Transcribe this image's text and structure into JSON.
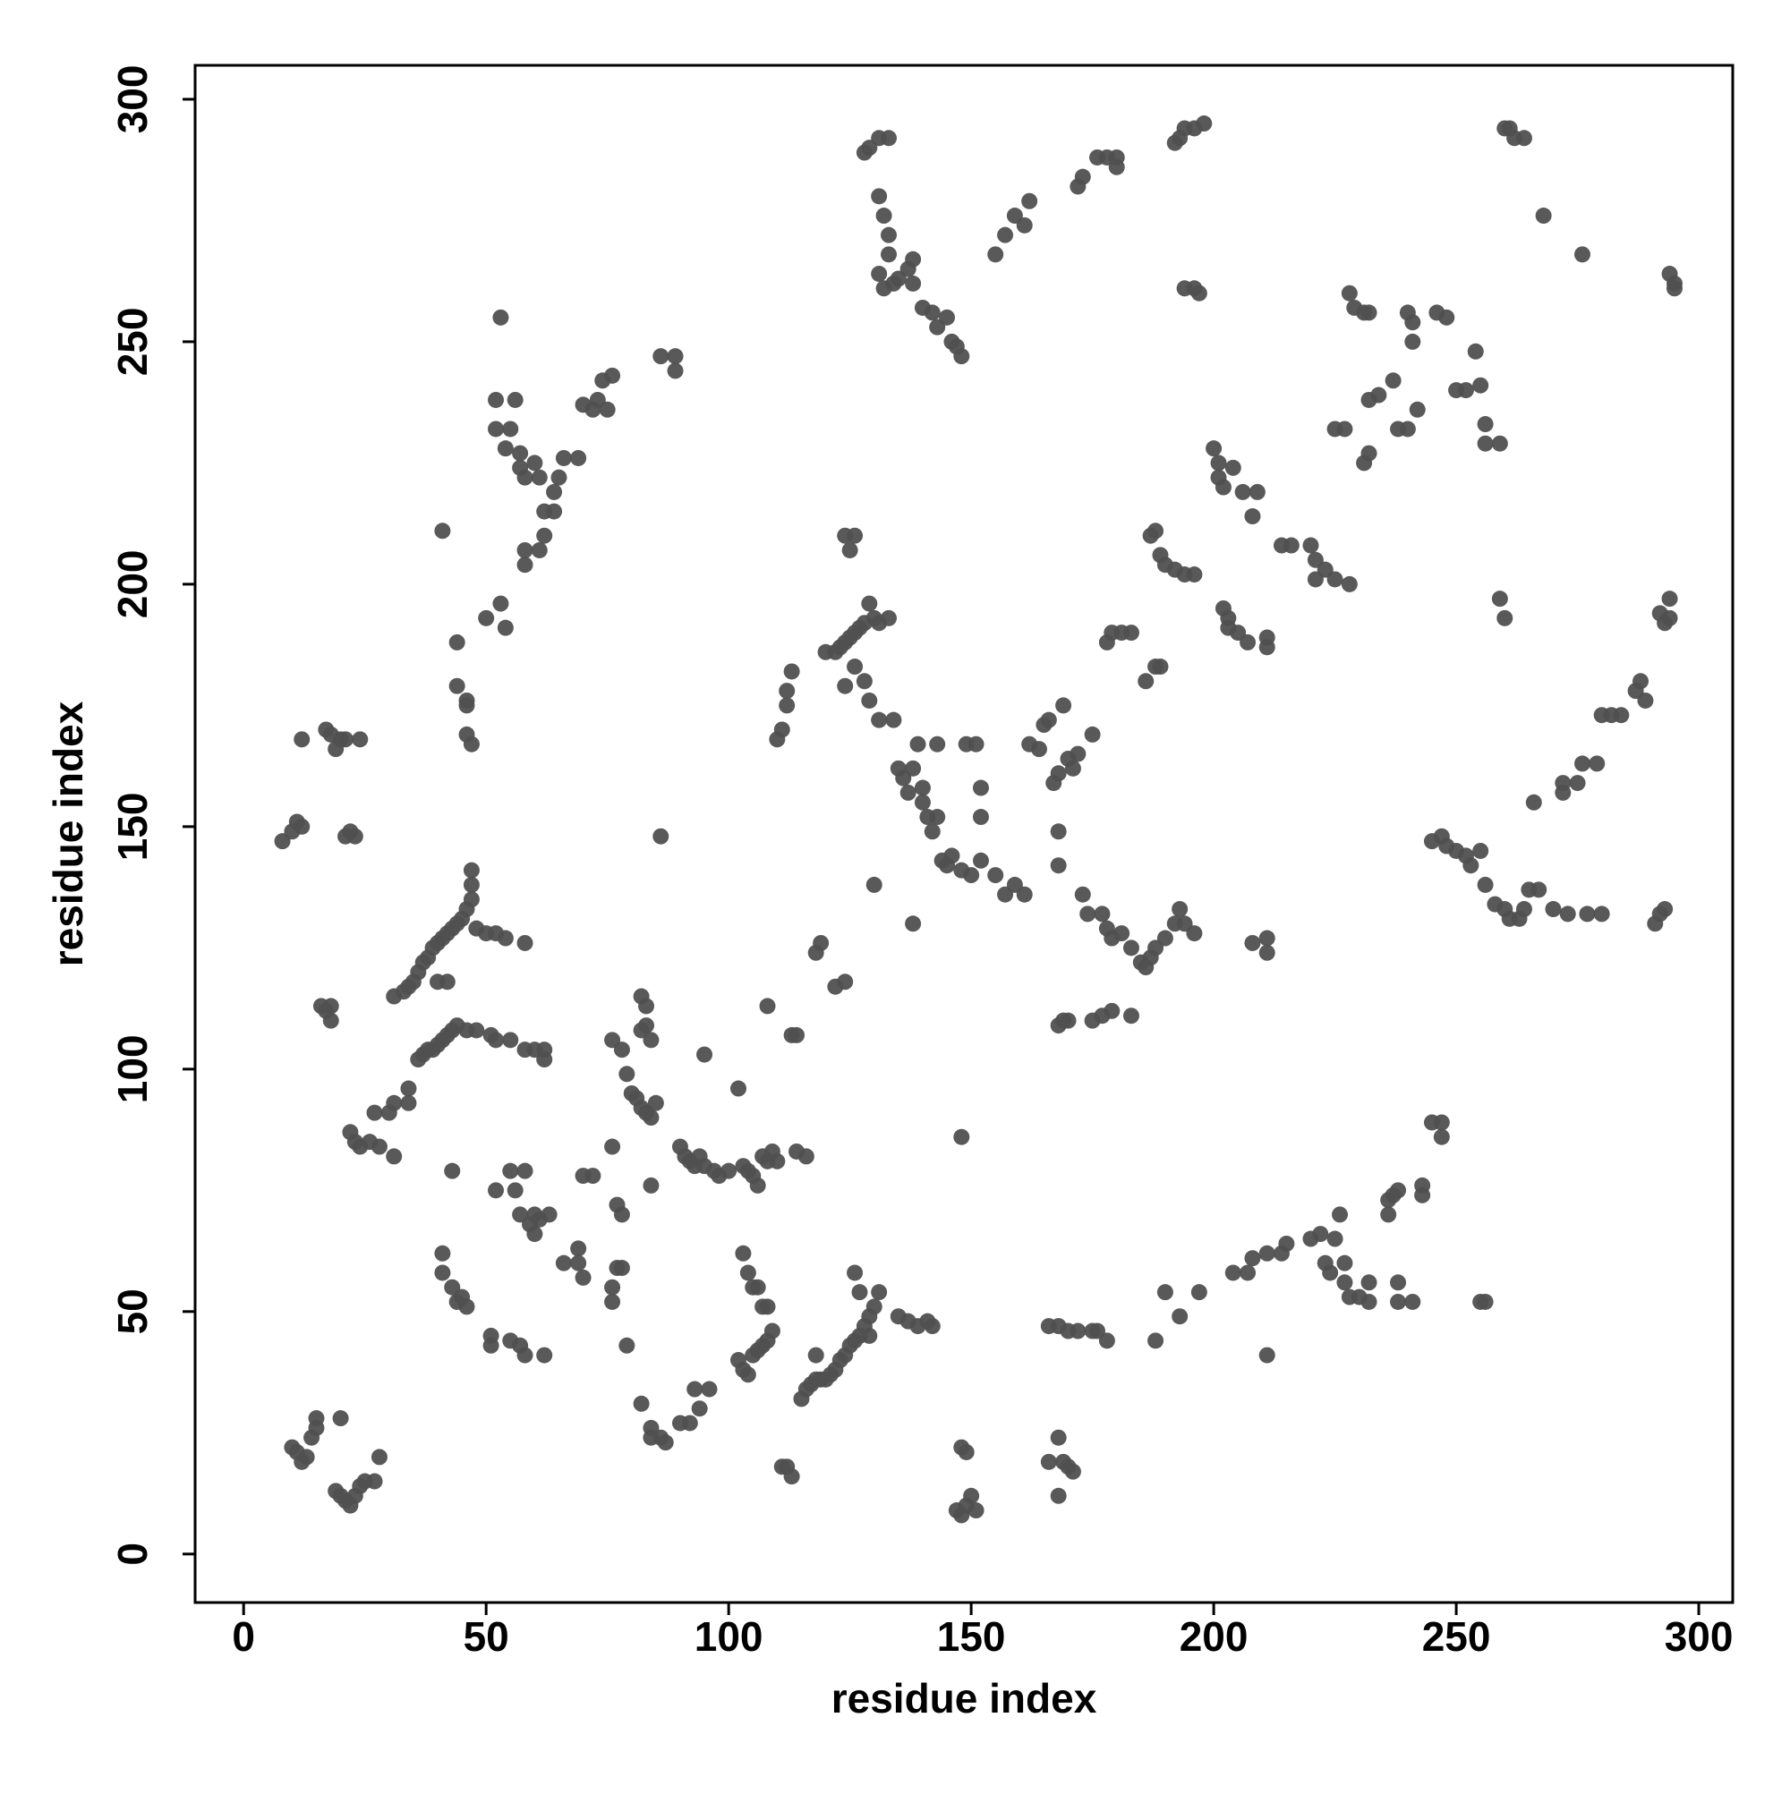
{
  "chart_data": {
    "type": "scatter",
    "xlabel": "residue index",
    "ylabel": "residue index",
    "xlim": [
      -10,
      307
    ],
    "ylim": [
      -10,
      307
    ],
    "xticks": [
      0,
      50,
      100,
      150,
      200,
      250,
      300
    ],
    "yticks": [
      0,
      50,
      100,
      150,
      200,
      250,
      300
    ],
    "color": "#505050",
    "x": [
      10,
      11,
      12,
      13,
      14,
      15,
      15,
      20,
      19,
      20,
      21,
      22,
      23,
      24,
      25,
      27,
      28,
      8,
      10,
      11,
      12,
      21,
      22,
      23,
      12,
      17,
      18,
      19,
      20,
      21,
      24,
      16,
      17,
      18,
      18,
      22,
      23,
      24,
      26,
      27,
      28,
      30,
      31,
      31,
      34,
      34,
      31,
      33,
      34,
      35,
      36,
      37,
      38,
      39,
      40,
      41,
      42,
      43,
      44,
      45,
      46,
      47,
      47,
      47,
      48,
      50,
      52,
      54,
      58,
      40,
      42,
      36,
      37,
      38,
      39,
      40,
      41,
      42,
      43,
      44,
      46,
      48,
      51,
      52,
      55,
      58,
      60,
      62,
      62,
      41,
      44,
      44,
      46,
      46,
      46,
      47,
      50,
      53,
      54,
      52,
      52,
      53,
      55,
      56,
      54,
      57,
      57,
      58,
      60,
      61,
      62,
      62,
      61,
      58,
      58,
      64,
      65,
      64,
      66,
      69,
      70,
      72,
      73,
      74,
      75,
      76,
      86,
      89,
      89,
      43,
      41,
      41,
      43,
      44,
      45,
      46,
      51,
      51,
      55,
      57,
      58,
      62,
      52,
      55,
      56,
      58,
      57,
      59,
      60,
      60,
      61,
      63,
      66,
      69,
      69,
      70,
      70,
      72,
      76,
      76,
      77,
      78,
      79,
      77,
      78,
      76,
      84,
      76,
      78,
      79,
      80,
      81,
      82,
      83,
      84,
      85,
      82,
      83,
      82,
      83,
      84,
      86,
      90,
      91,
      92,
      93,
      94,
      95,
      97,
      98,
      100,
      93,
      94,
      92,
      90,
      82,
      84,
      84,
      86,
      87,
      96,
      95,
      102,
      103,
      104,
      105,
      106,
      107,
      108,
      109,
      103,
      104,
      105,
      106,
      107,
      108,
      102,
      103,
      104,
      105,
      106,
      107,
      108,
      109,
      110,
      108,
      114,
      116,
      113,
      114,
      111,
      112,
      113,
      110,
      111,
      112,
      112,
      113,
      118,
      119,
      122,
      124,
      115,
      116,
      117,
      118,
      118,
      119,
      120,
      121,
      122,
      123,
      124,
      125,
      126,
      127,
      128,
      129,
      130,
      126,
      127,
      131,
      129,
      135,
      137,
      139,
      141,
      142,
      120,
      122,
      123,
      124,
      125,
      126,
      127,
      128,
      129,
      130,
      131,
      133,
      124,
      125,
      126,
      124,
      126,
      128,
      129,
      130,
      131,
      134,
      135,
      136,
      137,
      138,
      138,
      139,
      140,
      140,
      141,
      142,
      143,
      143,
      128,
      129,
      131,
      133,
      131,
      132,
      133,
      133,
      131,
      132,
      134,
      135,
      137,
      138,
      138,
      140,
      142,
      143,
      145,
      146,
      147,
      148,
      148,
      148,
      149,
      147,
      148,
      149,
      150,
      151,
      144,
      145,
      146,
      148,
      150,
      152,
      152,
      152,
      155,
      157,
      159,
      161,
      162,
      164,
      165,
      166,
      167,
      168,
      168,
      168,
      169,
      170,
      171,
      172,
      173,
      174,
      175,
      177,
      149,
      151,
      155,
      157,
      159,
      161,
      162,
      172,
      173,
      176,
      178,
      180,
      180,
      166,
      168,
      170,
      172,
      175,
      176,
      178,
      166,
      168,
      169,
      170,
      171,
      168,
      168,
      169,
      170,
      175,
      177,
      179,
      183,
      178,
      179,
      181,
      183,
      185,
      186,
      187,
      188,
      190,
      192,
      193,
      194,
      196,
      178,
      179,
      181,
      183,
      186,
      188,
      189,
      187,
      188,
      189,
      190,
      192,
      194,
      196,
      188,
      190,
      193,
      197,
      192,
      193,
      194,
      196,
      198,
      194,
      196,
      197,
      200,
      201,
      201,
      202,
      204,
      206,
      208,
      209,
      202,
      203,
      203,
      205,
      207,
      211,
      211,
      214,
      216,
      220,
      221,
      221,
      223,
      225,
      228,
      208,
      211,
      211,
      204,
      207,
      208,
      211,
      211,
      214,
      215,
      220,
      222,
      223,
      224,
      225,
      226,
      227,
      227,
      228,
      230,
      232,
      232,
      228,
      229,
      231,
      232,
      231,
      232,
      225,
      227,
      232,
      234,
      237,
      238,
      240,
      240,
      241,
      241,
      242,
      246,
      248,
      250,
      252,
      254,
      255,
      256,
      256,
      259,
      236,
      236,
      237,
      238,
      238,
      238,
      241,
      243,
      243,
      245,
      247,
      247,
      255,
      256,
      245,
      247,
      248,
      250,
      252,
      253,
      255,
      256,
      258,
      260,
      261,
      263,
      264,
      265,
      267,
      270,
      273,
      277,
      280,
      259,
      260,
      260,
      261,
      262,
      264,
      266,
      268,
      272,
      272,
      275,
      276,
      276,
      279,
      280,
      282,
      284,
      287,
      288,
      289,
      291,
      292,
      293,
      292,
      293,
      294,
      294,
      295,
      295,
      294
    ],
    "values": [
      22,
      21,
      19,
      20,
      24,
      26,
      28,
      28,
      13,
      12,
      11,
      10,
      12,
      14,
      15,
      15,
      20,
      147,
      149,
      151,
      150,
      148,
      149,
      148,
      168,
      170,
      169,
      166,
      168,
      168,
      168,
      113,
      112,
      110,
      113,
      87,
      85,
      84,
      85,
      91,
      84,
      91,
      93,
      82,
      93,
      96,
      115,
      116,
      117,
      118,
      120,
      122,
      123,
      125,
      126,
      127,
      128,
      129,
      130,
      131,
      133,
      135,
      138,
      141,
      129,
      128,
      128,
      127,
      126,
      118,
      118,
      102,
      103,
      104,
      104,
      105,
      106,
      107,
      108,
      109,
      108,
      108,
      107,
      106,
      106,
      104,
      104,
      102,
      104,
      211,
      188,
      179,
      175,
      176,
      169,
      167,
      193,
      196,
      191,
      232,
      238,
      255,
      232,
      238,
      228,
      227,
      224,
      222,
      225,
      222,
      215,
      210,
      207,
      204,
      207,
      219,
      222,
      215,
      226,
      226,
      237,
      236,
      238,
      242,
      236,
      243,
      247,
      247,
      244,
      79,
      62,
      58,
      55,
      52,
      53,
      51,
      45,
      43,
      44,
      43,
      41,
      41,
      75,
      79,
      75,
      79,
      70,
      68,
      66,
      70,
      69,
      70,
      60,
      63,
      60,
      57,
      78,
      78,
      52,
      55,
      59,
      59,
      43,
      72,
      70,
      84,
      76,
      106,
      104,
      99,
      95,
      94,
      92,
      91,
      90,
      93,
      108,
      109,
      115,
      113,
      106,
      148,
      84,
      82,
      81,
      80,
      82,
      80,
      79,
      78,
      79,
      34,
      30,
      27,
      27,
      31,
      26,
      24,
      24,
      23,
      34,
      103,
      40,
      38,
      37,
      41,
      42,
      43,
      44,
      46,
      62,
      58,
      55,
      55,
      51,
      51,
      96,
      80,
      79,
      78,
      76,
      82,
      81,
      83,
      81,
      113,
      83,
      82,
      107,
      107,
      18,
      18,
      16,
      168,
      170,
      175,
      178,
      182,
      124,
      126,
      117,
      118,
      32,
      34,
      35,
      36,
      41,
      36,
      36,
      37,
      38,
      40,
      41,
      43,
      44,
      45,
      47,
      49,
      51,
      58,
      54,
      54,
      45,
      49,
      48,
      47,
      48,
      47,
      186,
      186,
      187,
      188,
      189,
      190,
      191,
      192,
      196,
      193,
      192,
      193,
      210,
      207,
      210,
      179,
      183,
      180,
      176,
      138,
      172,
      172,
      162,
      160,
      157,
      162,
      130,
      167,
      158,
      155,
      152,
      149,
      152,
      167,
      289,
      290,
      292,
      292,
      280,
      276,
      272,
      268,
      264,
      261,
      262,
      263,
      265,
      267,
      262,
      257,
      256,
      253,
      255,
      250,
      249,
      247,
      86,
      22,
      21,
      9,
      8,
      10,
      12,
      9,
      143,
      142,
      144,
      141,
      140,
      158,
      152,
      143,
      140,
      136,
      138,
      136,
      167,
      166,
      171,
      172,
      159,
      161,
      149,
      142,
      175,
      164,
      162,
      165,
      136,
      132,
      169,
      132,
      167,
      167,
      268,
      272,
      276,
      274,
      279,
      282,
      284,
      288,
      288,
      288,
      286,
      47,
      47,
      46,
      46,
      46,
      46,
      44,
      19,
      24,
      19,
      18,
      17,
      12,
      109,
      110,
      110,
      110,
      111,
      112,
      111,
      129,
      127,
      128,
      125,
      122,
      121,
      123,
      125,
      127,
      130,
      133,
      130,
      128,
      188,
      190,
      190,
      190,
      180,
      183,
      183,
      210,
      211,
      206,
      204,
      203,
      202,
      202,
      44,
      54,
      49,
      54,
      291,
      292,
      294,
      294,
      295,
      261,
      261,
      260,
      228,
      225,
      222,
      220,
      224,
      219,
      214,
      219,
      195,
      193,
      191,
      190,
      188,
      187,
      189,
      208,
      208,
      208,
      205,
      201,
      203,
      201,
      200,
      126,
      124,
      127,
      58,
      58,
      61,
      41,
      62,
      62,
      64,
      65,
      66,
      60,
      58,
      65,
      70,
      56,
      60,
      53,
      53,
      52,
      56,
      260,
      257,
      256,
      256,
      225,
      227,
      232,
      232,
      238,
      239,
      242,
      232,
      232,
      256,
      254,
      250,
      236,
      256,
      255,
      240,
      240,
      248,
      241,
      233,
      229,
      229,
      70,
      73,
      74,
      75,
      52,
      56,
      52,
      74,
      76,
      89,
      89,
      86,
      52,
      52,
      147,
      148,
      146,
      145,
      144,
      142,
      145,
      138,
      134,
      133,
      131,
      131,
      133,
      137,
      137,
      133,
      132,
      132,
      132,
      197,
      193,
      294,
      294,
      292,
      292,
      155,
      276,
      157,
      159,
      159,
      268,
      163,
      163,
      173,
      173,
      173,
      178,
      180,
      176,
      130,
      132,
      133,
      194,
      192,
      197,
      264,
      262,
      261,
      193
    ]
  }
}
